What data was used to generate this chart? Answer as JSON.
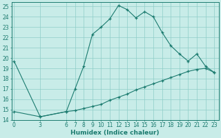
{
  "xlabel": "Humidex (Indice chaleur)",
  "bg_color": "#c8ece8",
  "line_color": "#1a7a6e",
  "grid_color": "#8ecdc8",
  "xlim": [
    -0.3,
    23.5
  ],
  "ylim": [
    14,
    25.4
  ],
  "xticks": [
    0,
    3,
    6,
    7,
    8,
    9,
    10,
    11,
    12,
    13,
    14,
    15,
    16,
    17,
    18,
    19,
    20,
    21,
    22,
    23
  ],
  "yticks": [
    14,
    15,
    16,
    17,
    18,
    19,
    20,
    21,
    22,
    23,
    24,
    25
  ],
  "line1_x": [
    0,
    3,
    6,
    7,
    8,
    9,
    10,
    11,
    12,
    13,
    14,
    15,
    16,
    17,
    18,
    19,
    20,
    21,
    22,
    23
  ],
  "line1_y": [
    19.7,
    14.3,
    14.8,
    17.0,
    19.2,
    22.3,
    23.0,
    23.8,
    25.1,
    24.7,
    23.9,
    24.5,
    24.0,
    22.5,
    21.2,
    20.4,
    19.7,
    20.4,
    19.2,
    18.6
  ],
  "line2_x": [
    0,
    3,
    6,
    7,
    8,
    9,
    10,
    11,
    12,
    13,
    14,
    15,
    16,
    17,
    18,
    19,
    20,
    21,
    22,
    23
  ],
  "line2_y": [
    14.8,
    14.3,
    14.8,
    14.9,
    15.1,
    15.3,
    15.5,
    15.9,
    16.2,
    16.5,
    16.9,
    17.2,
    17.5,
    17.8,
    18.1,
    18.4,
    18.7,
    18.9,
    19.0,
    18.6
  ],
  "xlabel_fontsize": 6.5,
  "tick_fontsize": 5.5
}
